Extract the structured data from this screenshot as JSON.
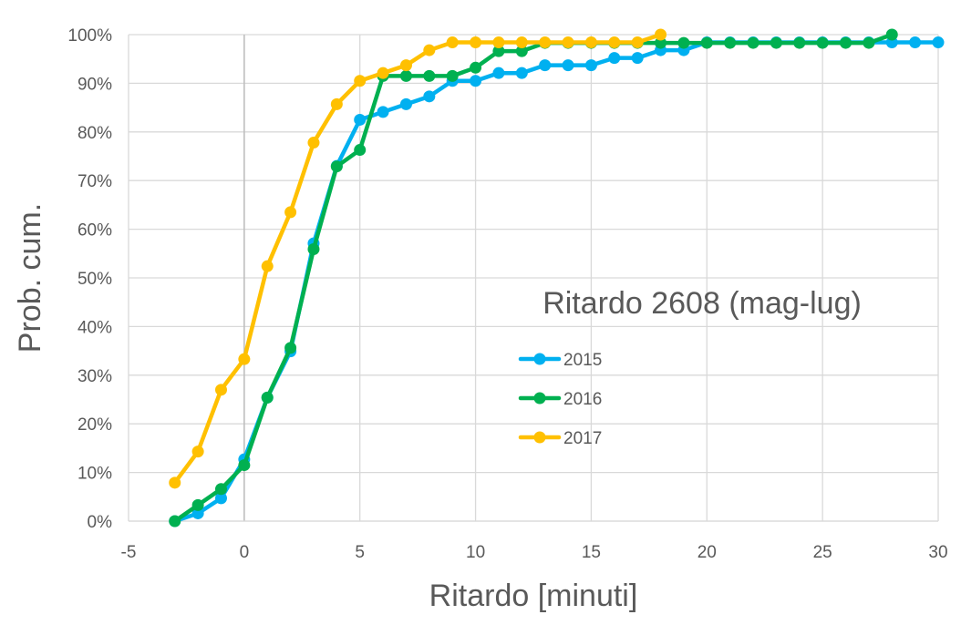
{
  "chart_data": {
    "type": "line",
    "title": "Ritardo 2608 (mag-lug)",
    "xlabel": "Ritardo [minuti]",
    "ylabel": "Prob. cum.",
    "xlim": [
      -5,
      30
    ],
    "ylim": [
      0,
      1
    ],
    "x_ticks": [
      "-5",
      "0",
      "5",
      "10",
      "15",
      "20",
      "25",
      "30"
    ],
    "y_ticks": [
      "0%",
      "10%",
      "20%",
      "30%",
      "40%",
      "50%",
      "60%",
      "70%",
      "80%",
      "90%",
      "100%"
    ],
    "grid": true,
    "legend_position": "right",
    "series": [
      {
        "name": "2015",
        "color": "#00B0F0",
        "points": [
          [
            -3,
            0.0
          ],
          [
            -2,
            0.016
          ],
          [
            -1,
            0.047
          ],
          [
            0,
            0.127
          ],
          [
            1,
            0.254
          ],
          [
            2,
            0.349
          ],
          [
            3,
            0.571
          ],
          [
            4,
            0.73
          ],
          [
            5,
            0.825
          ],
          [
            6,
            0.841
          ],
          [
            7,
            0.857
          ],
          [
            8,
            0.873
          ],
          [
            9,
            0.905
          ],
          [
            10,
            0.905
          ],
          [
            11,
            0.921
          ],
          [
            12,
            0.921
          ],
          [
            13,
            0.937
          ],
          [
            14,
            0.937
          ],
          [
            15,
            0.937
          ],
          [
            16,
            0.952
          ],
          [
            17,
            0.952
          ],
          [
            18,
            0.968
          ],
          [
            19,
            0.968
          ],
          [
            20,
            0.984
          ],
          [
            21,
            0.984
          ],
          [
            22,
            0.984
          ],
          [
            23,
            0.984
          ],
          [
            24,
            0.984
          ],
          [
            25,
            0.984
          ],
          [
            26,
            0.984
          ],
          [
            27,
            0.984
          ],
          [
            28,
            0.984
          ],
          [
            29,
            0.984
          ],
          [
            30,
            0.984
          ]
        ]
      },
      {
        "name": "2016",
        "color": "#00B050",
        "points": [
          [
            -3,
            0.0
          ],
          [
            -2,
            0.033
          ],
          [
            -1,
            0.066
          ],
          [
            0,
            0.115
          ],
          [
            1,
            0.254
          ],
          [
            2,
            0.356
          ],
          [
            3,
            0.559
          ],
          [
            4,
            0.729
          ],
          [
            5,
            0.763
          ],
          [
            6,
            0.915
          ],
          [
            7,
            0.915
          ],
          [
            8,
            0.915
          ],
          [
            9,
            0.915
          ],
          [
            10,
            0.932
          ],
          [
            11,
            0.966
          ],
          [
            12,
            0.966
          ],
          [
            13,
            0.983
          ],
          [
            14,
            0.983
          ],
          [
            15,
            0.983
          ],
          [
            16,
            0.983
          ],
          [
            17,
            0.983
          ],
          [
            18,
            0.983
          ],
          [
            19,
            0.983
          ],
          [
            20,
            0.983
          ],
          [
            21,
            0.983
          ],
          [
            22,
            0.983
          ],
          [
            23,
            0.983
          ],
          [
            24,
            0.983
          ],
          [
            25,
            0.983
          ],
          [
            26,
            0.983
          ],
          [
            27,
            0.983
          ],
          [
            28,
            1.0
          ]
        ]
      },
      {
        "name": "2017",
        "color": "#FFC000",
        "points": [
          [
            -3,
            0.079
          ],
          [
            -2,
            0.143
          ],
          [
            -1,
            0.27
          ],
          [
            0,
            0.333
          ],
          [
            1,
            0.524
          ],
          [
            2,
            0.635
          ],
          [
            3,
            0.778
          ],
          [
            4,
            0.857
          ],
          [
            5,
            0.905
          ],
          [
            6,
            0.921
          ],
          [
            7,
            0.937
          ],
          [
            8,
            0.968
          ],
          [
            9,
            0.984
          ],
          [
            10,
            0.984
          ],
          [
            11,
            0.984
          ],
          [
            12,
            0.984
          ],
          [
            13,
            0.984
          ],
          [
            14,
            0.984
          ],
          [
            15,
            0.984
          ],
          [
            16,
            0.984
          ],
          [
            17,
            0.984
          ],
          [
            18,
            1.0
          ]
        ]
      }
    ]
  }
}
